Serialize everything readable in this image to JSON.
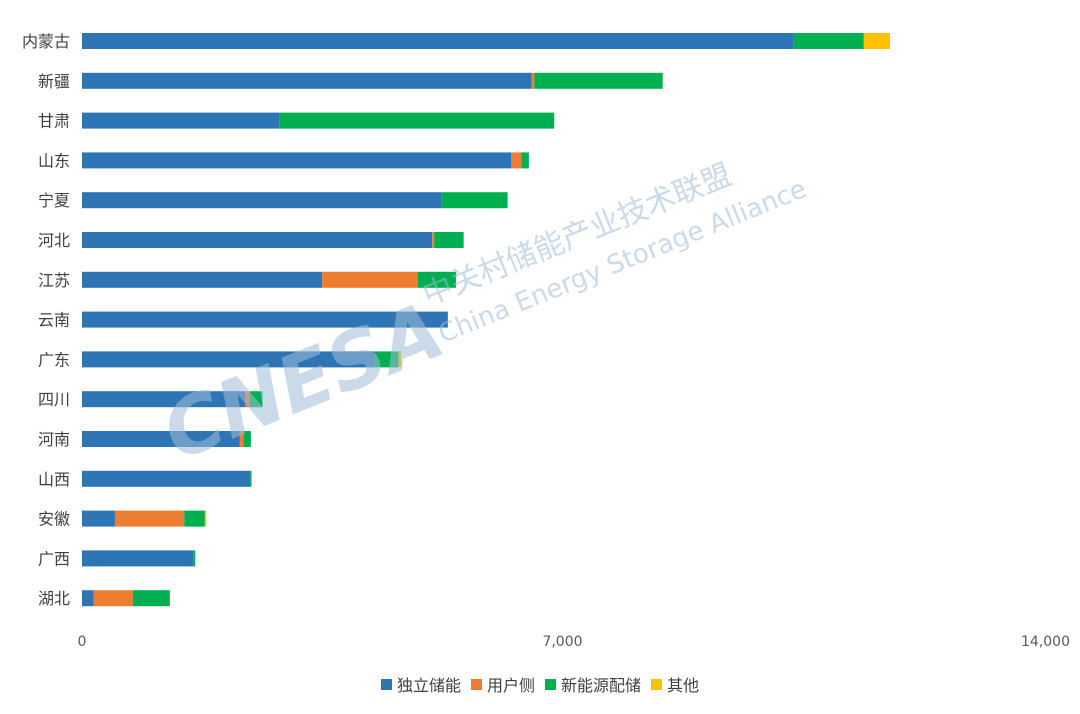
{
  "colors": {
    "series": [
      "#2E75B6",
      "#ED7D31",
      "#00B050",
      "#FFC000"
    ],
    "watermark": "#c9dbea"
  },
  "watermark": {
    "logo": "CNESA",
    "cn": "中关村储能产业技术联盟",
    "en": "China Energy Storage Alliance"
  },
  "chart_data": {
    "type": "bar",
    "orientation": "horizontal",
    "stacked": true,
    "categories": [
      "内蒙古",
      "新疆",
      "甘肃",
      "山东",
      "宁夏",
      "河北",
      "江苏",
      "云南",
      "广东",
      "四川",
      "河南",
      "山西",
      "安徽",
      "广西",
      "湖北"
    ],
    "series": [
      {
        "name": "独立储能",
        "values": [
          10370,
          6550,
          2880,
          6250,
          5240,
          5100,
          3500,
          5330,
          4280,
          2380,
          2300,
          2450,
          480,
          1620,
          170
        ]
      },
      {
        "name": "用户侧",
        "values": [
          0,
          40,
          0,
          150,
          0,
          30,
          1390,
          0,
          0,
          60,
          50,
          0,
          1010,
          0,
          570
        ]
      },
      {
        "name": "新能源配储",
        "values": [
          1020,
          1870,
          4000,
          110,
          960,
          430,
          560,
          0,
          330,
          190,
          110,
          20,
          300,
          30,
          540
        ]
      },
      {
        "name": "其他",
        "values": [
          380,
          0,
          0,
          0,
          0,
          0,
          0,
          0,
          40,
          0,
          0,
          0,
          20,
          0,
          0
        ]
      }
    ],
    "xlim": [
      0,
      14000
    ],
    "xticks": [
      "0",
      "7,000",
      "14,000"
    ],
    "xtick_values": [
      0,
      7000,
      14000
    ],
    "grid": false,
    "legend_position": "bottom"
  }
}
